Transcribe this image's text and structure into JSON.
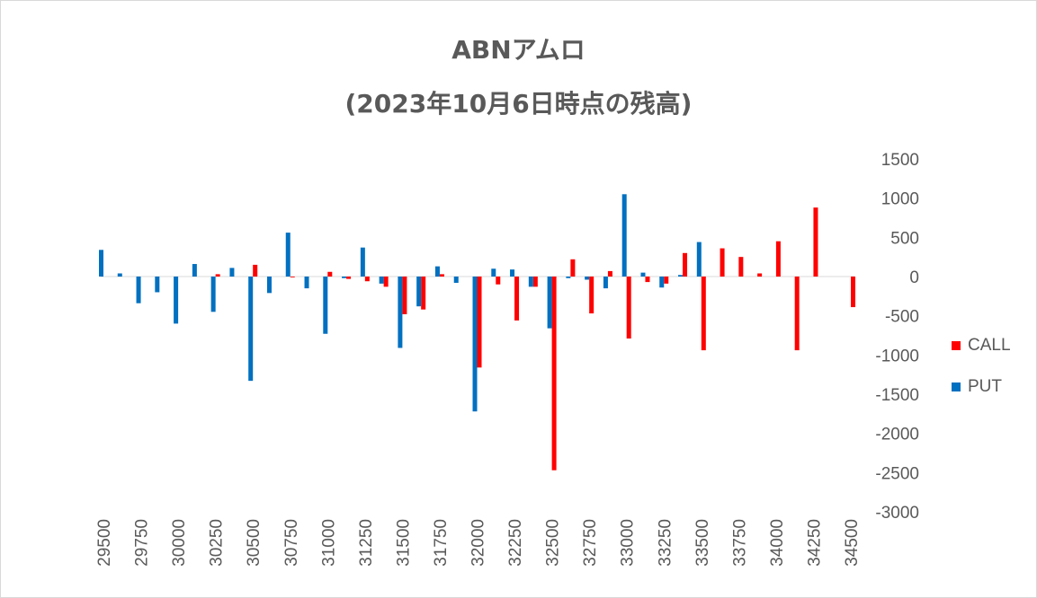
{
  "chart_data": {
    "type": "bar",
    "title": "ABNアムロ",
    "subtitle": "(2023年10月6日時点の残高)",
    "xlabel": "",
    "ylabel": "",
    "ylim": [
      -3000,
      1500
    ],
    "yticks": [
      1500,
      1000,
      500,
      0,
      -500,
      -1000,
      -1500,
      -2000,
      -2500,
      -3000
    ],
    "x_tick_labels": [
      "29500",
      "29750",
      "30000",
      "30250",
      "30500",
      "30750",
      "31000",
      "31250",
      "31500",
      "31750",
      "32000",
      "32250",
      "32500",
      "32750",
      "33000",
      "33250",
      "33500",
      "33750",
      "34000",
      "34250",
      "34500"
    ],
    "categories": [
      29500,
      29625,
      29750,
      29875,
      30000,
      30125,
      30250,
      30375,
      30500,
      30625,
      30750,
      30875,
      31000,
      31125,
      31250,
      31375,
      31500,
      31625,
      31750,
      31875,
      32000,
      32125,
      32250,
      32375,
      32500,
      32625,
      32750,
      32875,
      33000,
      33125,
      33250,
      33375,
      33500,
      33625,
      33750,
      33875,
      34000,
      34125,
      34250,
      34375,
      34500
    ],
    "legend_position": "right",
    "grid": false,
    "series": [
      {
        "name": "CALL",
        "color": "#ff0000",
        "values": [
          0,
          0,
          0,
          0,
          0,
          0,
          30,
          0,
          150,
          0,
          -10,
          0,
          60,
          -30,
          -60,
          -130,
          -480,
          -420,
          30,
          0,
          -1160,
          -100,
          -560,
          -130,
          -2470,
          220,
          -470,
          70,
          -790,
          -70,
          -90,
          300,
          -940,
          360,
          250,
          40,
          450,
          -940,
          880,
          0,
          -390
        ]
      },
      {
        "name": "PUT",
        "color": "#0070c0",
        "values": [
          340,
          40,
          -340,
          -200,
          -600,
          160,
          -450,
          110,
          -1330,
          -210,
          560,
          -150,
          -730,
          -20,
          370,
          -90,
          -910,
          -380,
          130,
          -80,
          -1720,
          100,
          90,
          -130,
          -660,
          -20,
          -40,
          -150,
          1050,
          50,
          -140,
          20,
          440,
          0,
          0,
          0,
          0,
          0,
          0,
          0,
          0
        ]
      }
    ]
  }
}
